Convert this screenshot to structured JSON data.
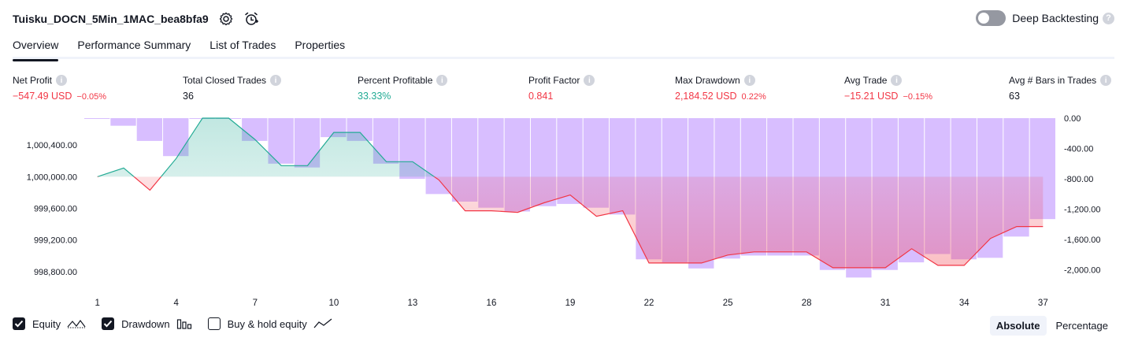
{
  "header": {
    "strategy_name": "Tuisku_DOCN_5Min_1MAC_bea8bfa9",
    "settings_icon": "gear-icon",
    "alert_icon": "alarm-clock-add-icon",
    "deep_backtesting_label": "Deep Backtesting",
    "deep_backtesting_enabled": false
  },
  "tabs": [
    {
      "label": "Overview",
      "active": true
    },
    {
      "label": "Performance Summary",
      "active": false
    },
    {
      "label": "List of Trades",
      "active": false
    },
    {
      "label": "Properties",
      "active": false
    }
  ],
  "metrics": [
    {
      "label": "Net Profit",
      "value": "−547.49 USD",
      "pct": "−0.05%",
      "color": "red"
    },
    {
      "label": "Total Closed Trades",
      "value": "36",
      "pct": "",
      "color": "dark"
    },
    {
      "label": "Percent Profitable",
      "value": "33.33%",
      "pct": "",
      "color": "green"
    },
    {
      "label": "Profit Factor",
      "value": "0.841",
      "pct": "",
      "color": "red"
    },
    {
      "label": "Max Drawdown",
      "value": "2,184.52 USD",
      "pct": "0.22%",
      "color": "red"
    },
    {
      "label": "Avg Trade",
      "value": "−15.21 USD",
      "pct": "−0.15%",
      "color": "red"
    },
    {
      "label": "Avg # Bars in Trades",
      "value": "63",
      "pct": "",
      "color": "dark"
    }
  ],
  "legend": {
    "equity": {
      "label": "Equity",
      "checked": true
    },
    "drawdown": {
      "label": "Drawdown",
      "checked": true
    },
    "buy_hold": {
      "label": "Buy & hold equity",
      "checked": false
    }
  },
  "modes": {
    "absolute": "Absolute",
    "percentage": "Percentage",
    "selected": "Absolute"
  },
  "colors": {
    "equity_up": "#22ab94",
    "equity_down": "#f23645",
    "drawdown_bar": "#d1b3ff",
    "text": "#131722"
  },
  "chart_data": {
    "type": "line",
    "baseline": 1000000,
    "x": [
      1,
      2,
      3,
      4,
      5,
      6,
      7,
      8,
      9,
      10,
      11,
      12,
      13,
      14,
      15,
      16,
      17,
      18,
      19,
      20,
      21,
      22,
      23,
      24,
      25,
      26,
      27,
      28,
      29,
      30,
      31,
      32,
      33,
      34,
      35,
      36,
      37
    ],
    "xticks": [
      "1",
      "4",
      "7",
      "10",
      "13",
      "16",
      "19",
      "22",
      "25",
      "28",
      "31",
      "34",
      "37"
    ],
    "series": [
      {
        "values": [
          1000000,
          1000110,
          999830,
          1000230,
          1000740,
          1000740,
          1000470,
          1000140,
          1000140,
          1000560,
          1000560,
          1000190,
          1000190,
          999960,
          999570,
          999570,
          999550,
          999670,
          999770,
          999500,
          999570,
          998910,
          998910,
          998910,
          999010,
          999050,
          999050,
          999050,
          998850,
          998850,
          998850,
          999090,
          998880,
          998880,
          999220,
          999370,
          999370
        ],
        "axis": "left"
      },
      {
        "values": [
          0,
          -100,
          -300,
          -500,
          0,
          0,
          -300,
          -600,
          -650,
          -250,
          -300,
          -600,
          -800,
          -1000,
          -1100,
          -1180,
          -1230,
          -1160,
          -1130,
          -1180,
          -1270,
          -1860,
          -1900,
          -1980,
          -1850,
          -1810,
          -1810,
          -1810,
          -2000,
          -2100,
          -2000,
          -1900,
          -1790,
          -1860,
          -1840,
          -1560,
          -1330
        ],
        "axis": "right"
      }
    ],
    "yticks_left": [
      "1,000,400.00",
      "1,000,000.00",
      "999,600.00",
      "999,200.00",
      "998,800.00"
    ],
    "yticks_right": [
      "0.00",
      "-400.00",
      "-800.00",
      "-1,200.00",
      "-1,600.00",
      "-2,000.00"
    ],
    "ylim_left": [
      998630,
      1000740
    ],
    "ylim_right": [
      -2200,
      0
    ]
  }
}
